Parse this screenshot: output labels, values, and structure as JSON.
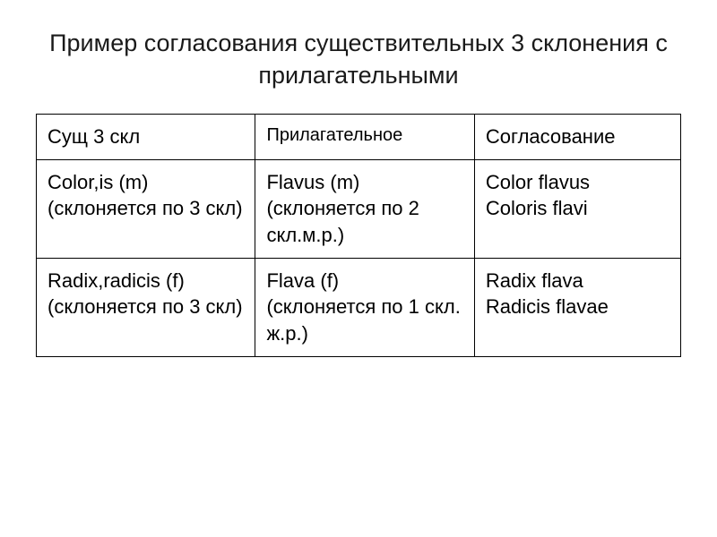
{
  "title": "Пример согласования существительных 3 склонения с прилагательными",
  "table": {
    "headers": {
      "col1": "Сущ 3 скл",
      "col2": "Прилагательное",
      "col3": "Согласование"
    },
    "rows": [
      {
        "noun_line1": "Color,is (m)",
        "noun_line2": "(склоняется по 3 скл)",
        "adj_line1": "Flavus (m)",
        "adj_line2": "(склоняется по 2 скл.м.р.)",
        "agree_line1": "Color flavus",
        "agree_line2": "Coloris flavi"
      },
      {
        "noun_line1": "Radix,radicis (f)",
        "noun_line2": "(склоняется по 3 скл)",
        "adj_line1": "Flava (f)",
        "adj_line2": "(склоняется по 1 скл. ж.р.)",
        "agree_line1": "Radix flava",
        "agree_line2": "Radicis flavae"
      }
    ],
    "styling": {
      "border_color": "#000000",
      "border_width": 1.5,
      "background_color": "#ffffff",
      "title_fontsize": 27,
      "header_fontsize": 22,
      "header_col2_fontsize": 20,
      "cell_fontsize": 22,
      "text_color": "#000000",
      "cell_padding": "10px 12px",
      "col_widths": [
        "34%",
        "34%",
        "32%"
      ],
      "line_height": 1.35
    }
  }
}
